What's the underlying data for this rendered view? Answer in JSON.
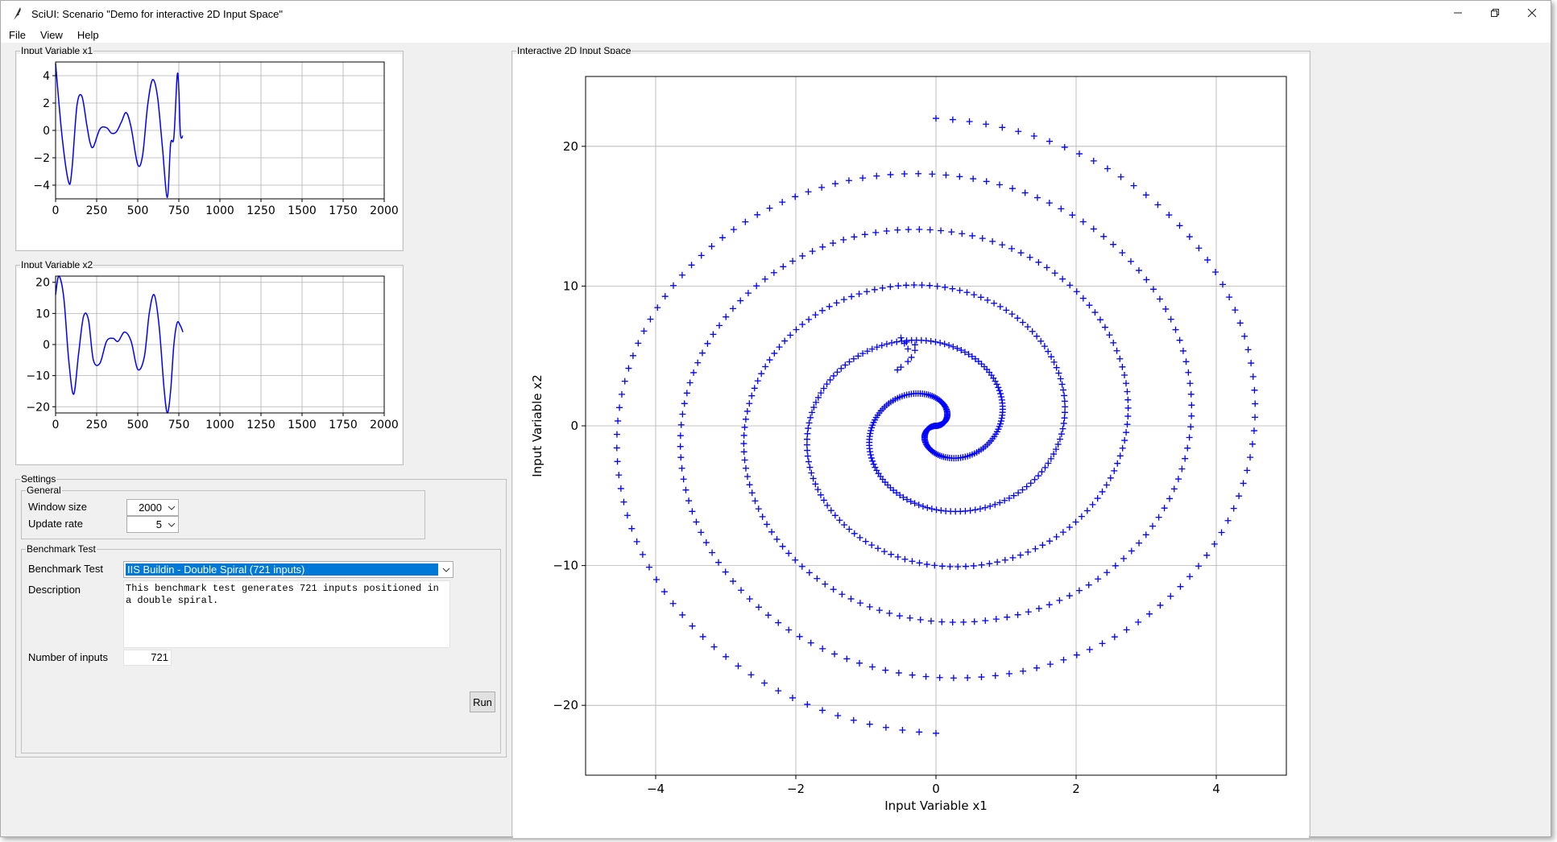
{
  "window": {
    "title": "SciUI: Scenario \"Demo for interactive 2D Input Space\"",
    "icons": {
      "app": "feather-icon",
      "minimize": "minimize-icon",
      "restore": "restore-icon",
      "close": "close-icon"
    }
  },
  "menu": [
    "File",
    "View",
    "Help"
  ],
  "panels": {
    "x1_title": "Input Variable x1",
    "x2_title": "Input Variable x2",
    "space_title": "Interactive 2D Input Space"
  },
  "settings": {
    "title": "Settings",
    "general": {
      "title": "General",
      "window_size_label": "Window size",
      "window_size_value": "2000",
      "update_rate_label": "Update rate",
      "update_rate_value": "5"
    },
    "benchmark": {
      "title": "Benchmark Test",
      "test_label": "Benchmark Test",
      "test_value": "IIS Buildin - Double Spiral (721 inputs)",
      "description_label": "Description",
      "description_value": "This benchmark test generates 721 inputs positioned in a double spiral.",
      "inputs_label": "Number of inputs",
      "inputs_value": "721",
      "run_label": "Run"
    }
  },
  "chart_data": [
    {
      "id": "x1_plot",
      "type": "line",
      "color": "#0000ff",
      "xlim": [
        0,
        2000
      ],
      "ylim": [
        -5,
        5
      ],
      "xticks": [
        0,
        250,
        500,
        750,
        1000,
        1250,
        1500,
        1750,
        2000
      ],
      "yticks": [
        -4,
        -2,
        0,
        2,
        4
      ],
      "ytick_labels": [
        "−4",
        "−2",
        "0",
        "2",
        "4"
      ],
      "grid": true,
      "x": [
        0,
        40,
        80,
        100,
        130,
        160,
        190,
        210,
        230,
        270,
        310,
        340,
        370,
        400,
        430,
        460,
        500,
        530,
        560,
        590,
        620,
        650,
        680,
        700,
        720,
        740,
        750,
        760,
        775
      ],
      "y": [
        4.9,
        -0.5,
        -3.8,
        -2.8,
        1.8,
        2.5,
        0.4,
        -0.9,
        -1.2,
        0.1,
        0.2,
        -0.2,
        -0.1,
        0.6,
        1.3,
        0.2,
        -2.5,
        -1.8,
        1.8,
        3.7,
        2.5,
        -1.2,
        -4.9,
        -1.0,
        -0.5,
        4.0,
        3.0,
        -0.3,
        -0.4
      ]
    },
    {
      "id": "x2_plot",
      "type": "line",
      "color": "#0000ff",
      "xlim": [
        0,
        2000
      ],
      "ylim": [
        -22,
        22
      ],
      "xticks": [
        0,
        250,
        500,
        750,
        1000,
        1250,
        1500,
        1750,
        2000
      ],
      "yticks": [
        -20,
        -10,
        0,
        10,
        20
      ],
      "ytick_labels": [
        "−20",
        "−10",
        "0",
        "10",
        "20"
      ],
      "grid": true,
      "x": [
        0,
        20,
        50,
        80,
        110,
        140,
        170,
        200,
        230,
        270,
        310,
        350,
        380,
        420,
        460,
        500,
        540,
        570,
        600,
        630,
        660,
        680,
        700,
        720,
        740,
        760,
        775
      ],
      "y": [
        16,
        22,
        15,
        -5,
        -16,
        -3,
        9,
        8,
        -5,
        -6,
        1,
        2,
        1,
        4,
        1,
        -8,
        -4,
        10,
        16,
        6,
        -14,
        -22,
        -15,
        0,
        7,
        6,
        4
      ]
    },
    {
      "id": "input_space",
      "type": "scatter",
      "marker": "+",
      "color": "#0000ff",
      "xlabel": "Input Variable x1",
      "ylabel": "Input Variable x2",
      "xlim": [
        -5,
        5
      ],
      "ylim": [
        -25,
        25
      ],
      "xticks": [
        -4,
        -2,
        0,
        2,
        4
      ],
      "xtick_labels": [
        "−4",
        "−2",
        "0",
        "2",
        "4"
      ],
      "yticks": [
        -20,
        -10,
        0,
        10,
        20
      ],
      "ytick_labels": [
        "−20",
        "−10",
        "0",
        "10",
        "20"
      ],
      "grid": true,
      "spiral": {
        "points": 721,
        "turns": 2.75,
        "max_radius": 5,
        "x_scale": 1,
        "y_scale": 4.4
      },
      "cluster": {
        "x": [
          -0.5,
          -0.45,
          -0.4,
          -0.35,
          -0.3,
          -0.5,
          -0.4,
          -0.55,
          -0.3,
          -0.42
        ],
        "y": [
          6.3,
          5.9,
          5.5,
          4.9,
          5.8,
          4.2,
          4.6,
          4.0,
          5.4,
          6.0
        ]
      }
    }
  ]
}
